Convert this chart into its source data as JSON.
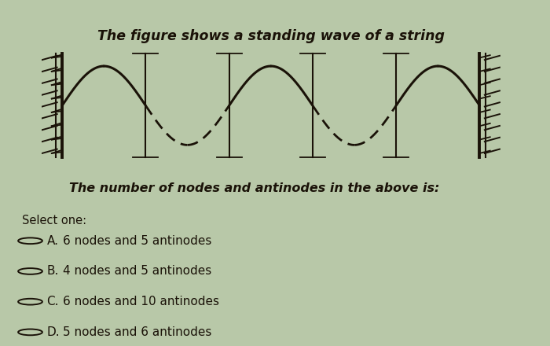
{
  "title": "The figure shows a standing wave of a string",
  "subtitle": "The number of nodes and antinodes in the above is:",
  "select_label": "Select one:",
  "options": [
    [
      "A.",
      "6 nodes and 5 antinodes"
    ],
    [
      "B.",
      "4 nodes and 5 antinodes"
    ],
    [
      "C.",
      "6 nodes and 10 antinodes"
    ],
    [
      "D.",
      "5 nodes and 6 antinodes"
    ]
  ],
  "bg_box_color": "#d8e8e4",
  "bg_page_color": "#b8c8a8",
  "wave_color": "#1a1208",
  "text_color": "#1a1208",
  "n_cycles": 5,
  "amplitude": 0.38
}
